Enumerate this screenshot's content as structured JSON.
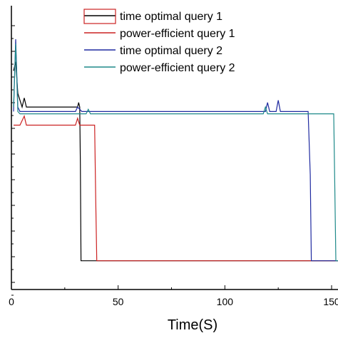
{
  "chart_data": {
    "type": "line",
    "xlabel": "Time(S)",
    "ylabel": "",
    "xlim": [
      0,
      153
    ],
    "ylim": [
      0,
      1
    ],
    "x_ticks": [
      0,
      50,
      100,
      150
    ],
    "x_tick_labels": [
      "0",
      "50",
      "100",
      "150"
    ],
    "grid": false,
    "legend_position": "top-right",
    "series": [
      {
        "name": "time optimal query 1",
        "color": "#000000",
        "points": [
          [
            1,
            0.86
          ],
          [
            2,
            0.9
          ],
          [
            3,
            0.76
          ],
          [
            5,
            0.7
          ],
          [
            6,
            0.74
          ],
          [
            7,
            0.7
          ],
          [
            31,
            0.7
          ],
          [
            31.5,
            0.72
          ],
          [
            32,
            0.7
          ],
          [
            32.3,
            0.45
          ],
          [
            32.6,
            0.02
          ],
          [
            40,
            0.02
          ],
          [
            100,
            0.02
          ],
          [
            153,
            0.02
          ]
        ]
      },
      {
        "name": "power-efficient query 1",
        "color": "#cc2222",
        "points": [
          [
            1,
            0.62
          ],
          [
            2,
            0.62
          ],
          [
            4,
            0.62
          ],
          [
            6,
            0.66
          ],
          [
            7,
            0.62
          ],
          [
            30,
            0.62
          ],
          [
            31,
            0.65
          ],
          [
            32,
            0.62
          ],
          [
            39,
            0.62
          ],
          [
            39.5,
            0.3
          ],
          [
            40,
            0.02
          ],
          [
            100,
            0.02
          ],
          [
            153,
            0.02
          ]
        ]
      },
      {
        "name": "time optimal query 2",
        "color": "#1f2aa0",
        "points": [
          [
            1,
            0.68
          ],
          [
            2,
            1.0
          ],
          [
            3,
            0.7
          ],
          [
            4,
            0.68
          ],
          [
            30,
            0.68
          ],
          [
            31,
            0.7
          ],
          [
            33,
            0.68
          ],
          [
            119,
            0.68
          ],
          [
            120,
            0.72
          ],
          [
            121,
            0.68
          ],
          [
            124,
            0.68
          ],
          [
            125,
            0.73
          ],
          [
            126,
            0.68
          ],
          [
            139,
            0.68
          ],
          [
            140,
            0.4
          ],
          [
            140.5,
            0.02
          ],
          [
            153,
            0.02
          ]
        ]
      },
      {
        "name": "power-efficient query 2",
        "color": "#1f8a8a",
        "points": [
          [
            1,
            0.7
          ],
          [
            2,
            0.98
          ],
          [
            3,
            0.68
          ],
          [
            4,
            0.67
          ],
          [
            35,
            0.67
          ],
          [
            36,
            0.69
          ],
          [
            37,
            0.67
          ],
          [
            118,
            0.67
          ],
          [
            119,
            0.7
          ],
          [
            120,
            0.67
          ],
          [
            151,
            0.67
          ],
          [
            151.5,
            0.35
          ],
          [
            152,
            0.02
          ],
          [
            153,
            0.02
          ]
        ]
      }
    ]
  }
}
